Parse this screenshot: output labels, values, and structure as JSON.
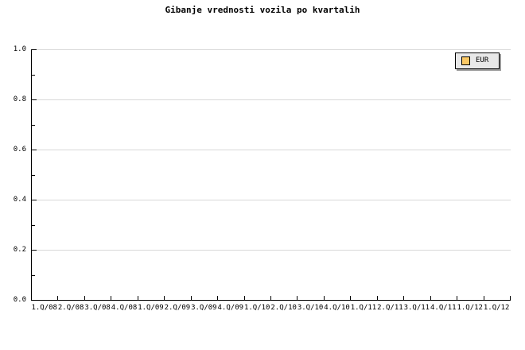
{
  "colors": {
    "background": "#ffffff",
    "text": "#000000",
    "axis": "#000000",
    "gridline": "#d8d8d8",
    "legend_background": "#e8e8e8",
    "legend_border": "#000000",
    "legend_shadow": "#999999",
    "series_eur_swatch": "#fac865"
  },
  "chart_data": {
    "type": "line",
    "title": "Gibanje vrednosti vozila po kvartalih",
    "categories": [
      "1.Q/08",
      "2.Q/08",
      "3.Q/08",
      "4.Q/08",
      "1.Q/09",
      "2.Q/09",
      "3.Q/09",
      "4.Q/09",
      "1.Q/10",
      "2.Q/10",
      "3.Q/10",
      "4.Q/10",
      "1.Q/11",
      "2.Q/11",
      "3.Q/11",
      "4.Q/11",
      "1.Q/12",
      "1.Q/12"
    ],
    "series": [
      {
        "name": "EUR",
        "values": []
      }
    ],
    "plot_empty": true,
    "xlabel": "",
    "ylabel": "",
    "ylim": [
      0,
      1
    ],
    "y_tick_labels": [
      "0.0",
      "0.2",
      "0.4",
      "0.6",
      "0.8",
      "1.0"
    ],
    "y_major_step": 0.2,
    "y_minor_step": 0.1,
    "grid": "horizontal-major",
    "legend_position": "top-right"
  }
}
